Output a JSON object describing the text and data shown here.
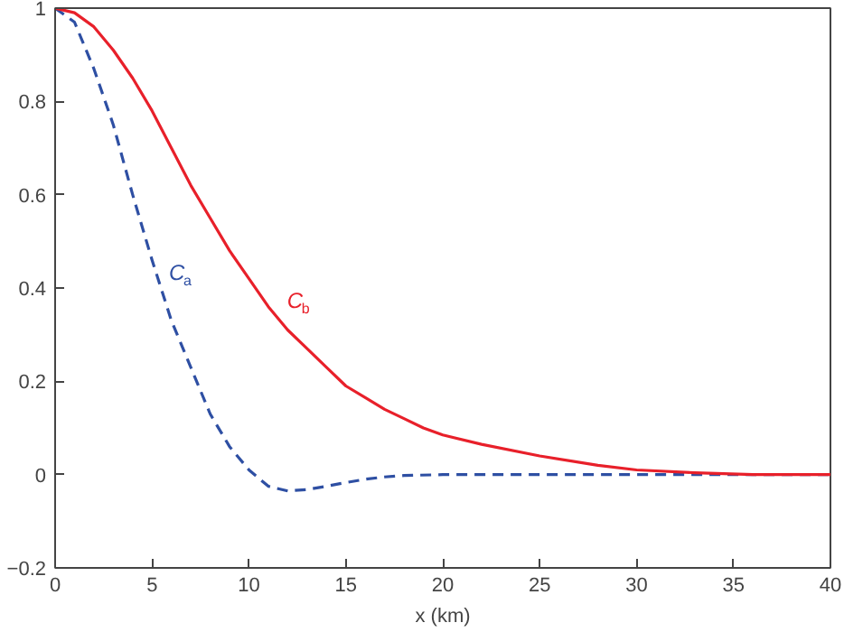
{
  "chart_data": {
    "type": "line",
    "xlabel": "x (km)",
    "xlim": [
      0,
      40
    ],
    "ylim": [
      -0.2,
      1
    ],
    "xticks": [
      0,
      5,
      10,
      15,
      20,
      25,
      30,
      35,
      40
    ],
    "yticks": [
      -0.2,
      0,
      0.2,
      0.4,
      0.6,
      0.8,
      1
    ],
    "grid": false,
    "series": [
      {
        "color": "#2e4fa3",
        "line_style": "dashed",
        "x": [
          0,
          1,
          2,
          3,
          4,
          5,
          6,
          7,
          8,
          9,
          10,
          11,
          12,
          13,
          14,
          15,
          16,
          17,
          18,
          20,
          25,
          30,
          35,
          40
        ],
        "values": [
          1,
          0.97,
          0.87,
          0.75,
          0.6,
          0.46,
          0.33,
          0.23,
          0.13,
          0.06,
          0.01,
          -0.025,
          -0.035,
          -0.032,
          -0.025,
          -0.017,
          -0.01,
          -0.005,
          -0.002,
          0,
          0,
          0,
          0,
          0
        ]
      },
      {
        "color": "#e8202a",
        "line_style": "solid",
        "x": [
          0,
          1,
          2,
          3,
          4,
          5,
          6,
          7,
          8,
          9,
          10,
          11,
          12,
          13,
          14,
          15,
          16,
          17,
          18,
          19,
          20,
          22,
          25,
          28,
          30,
          33,
          36,
          40
        ],
        "values": [
          1,
          0.99,
          0.96,
          0.91,
          0.85,
          0.78,
          0.7,
          0.62,
          0.55,
          0.48,
          0.42,
          0.36,
          0.31,
          0.27,
          0.23,
          0.19,
          0.165,
          0.14,
          0.12,
          0.1,
          0.085,
          0.065,
          0.04,
          0.02,
          0.01,
          0.004,
          0,
          0
        ]
      }
    ],
    "annotations": [
      {
        "text": "C$_{a}$",
        "x": 5.5,
        "y": 0.39
      },
      {
        "text": "C$_{b}$",
        "x": 11.6,
        "y": 0.33
      }
    ]
  }
}
